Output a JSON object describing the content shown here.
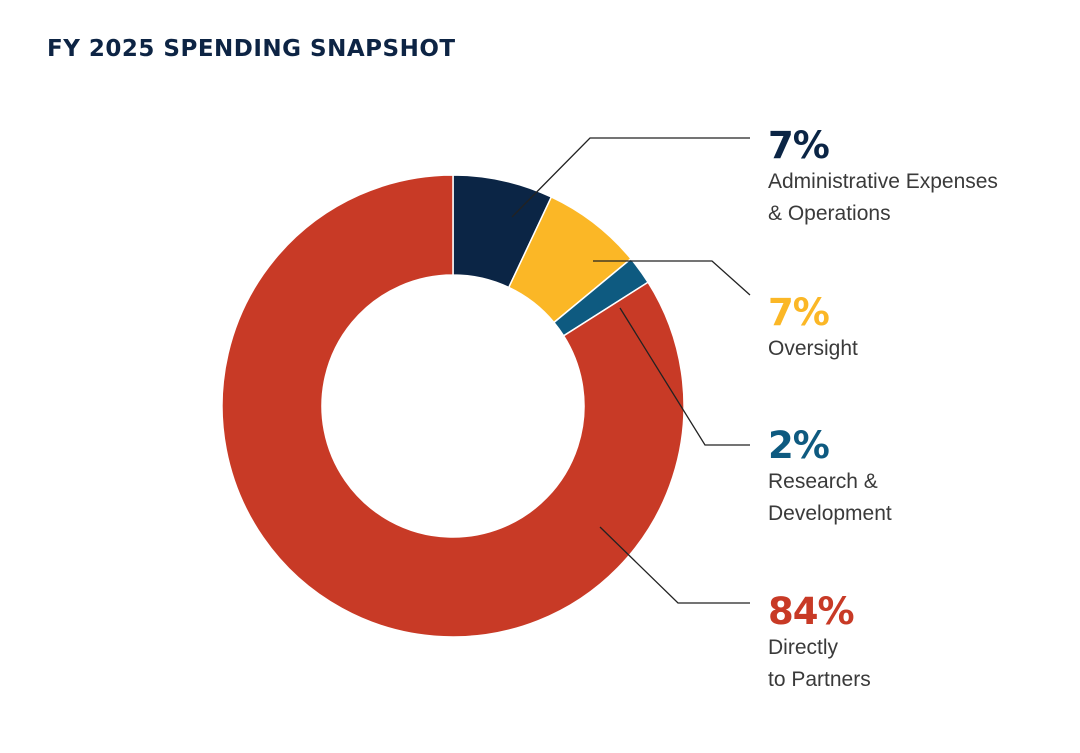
{
  "chart_data": {
    "type": "pie",
    "title": "FY 2025 SPENDING SNAPSHOT",
    "donut": true,
    "slices": [
      {
        "label": "Administrative Expenses\n& Operations",
        "value": 7,
        "display": "7%",
        "color": "#0b2545"
      },
      {
        "label": "Oversight",
        "value": 7,
        "display": "7%",
        "color": "#fbb726"
      },
      {
        "label": "Research &\nDevelopment",
        "value": 2,
        "display": "2%",
        "color": "#0e5a80"
      },
      {
        "label": "Directly\nto Partners",
        "value": 84,
        "display": "84%",
        "color": "#c83a26"
      }
    ]
  }
}
